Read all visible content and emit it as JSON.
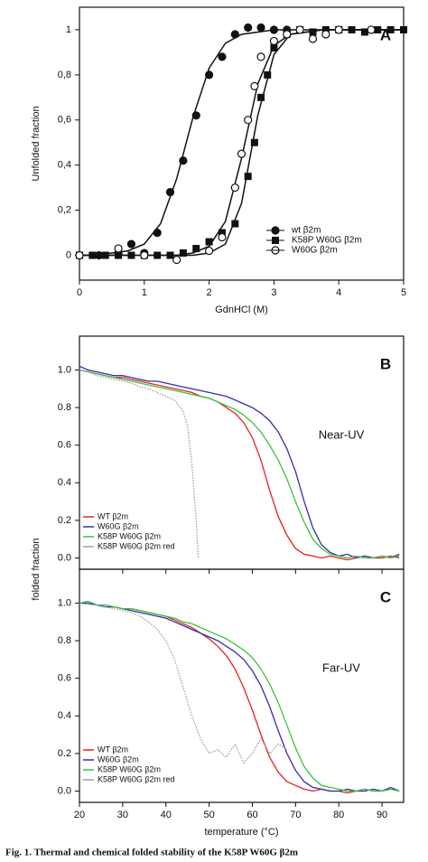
{
  "chart_data": [
    {
      "type": "scatter",
      "panel": "A",
      "xlabel": "GdnHCl (M)",
      "ylabel": "Unfolded fraction",
      "xlim": [
        0,
        5
      ],
      "ylim": [
        -0.11,
        1.1
      ],
      "xticks": [
        0,
        1,
        2,
        3,
        4,
        5
      ],
      "yticks": [
        0,
        {
          "value": 0.2,
          "label": "0,2"
        },
        {
          "value": 0.4,
          "label": "0,4"
        },
        {
          "value": 0.6,
          "label": "0,6"
        },
        {
          "value": 0.8,
          "label": "0,8"
        },
        1
      ],
      "fit_x": [
        0,
        0.25,
        0.5,
        0.75,
        1,
        1.25,
        1.5,
        1.75,
        2,
        2.25,
        2.5,
        2.75,
        3,
        3.25,
        3.5,
        3.75,
        4,
        4.25,
        4.5,
        4.75,
        5
      ],
      "series": [
        {
          "name": "wt β2m",
          "marker": "filled-circle",
          "color": "#111111",
          "x": [
            0,
            0.3,
            0.6,
            0.8,
            1.0,
            1.2,
            1.4,
            1.6,
            1.8,
            2.0,
            2.2,
            2.4,
            2.6,
            2.8,
            3.0,
            3.2
          ],
          "values": [
            0,
            0,
            0.01,
            0.05,
            0.01,
            0.1,
            0.28,
            0.42,
            0.62,
            0.8,
            0.88,
            0.98,
            1.01,
            1.01,
            1.0,
            1.0
          ],
          "fit_values": [
            0,
            0,
            0.01,
            0.02,
            0.05,
            0.14,
            0.34,
            0.61,
            0.83,
            0.94,
            0.98,
            0.99,
            1,
            1,
            1,
            1,
            1,
            1,
            1,
            1,
            1
          ]
        },
        {
          "name": "K58P W60G β2m",
          "marker": "filled-square",
          "color": "#111111",
          "x": [
            0,
            0.2,
            0.4,
            0.6,
            0.8,
            1.0,
            1.2,
            1.4,
            1.6,
            1.8,
            2.0,
            2.2,
            2.4,
            2.6,
            2.7,
            2.8,
            2.9,
            3.0,
            3.2,
            3.4,
            3.6,
            3.8,
            4.0,
            4.2,
            4.4,
            4.6,
            4.8,
            5.0
          ],
          "values": [
            0,
            0,
            0,
            0,
            0,
            0,
            0,
            0,
            0.01,
            0.03,
            0.06,
            0.1,
            0.14,
            0.35,
            0.5,
            0.7,
            0.8,
            0.92,
            0.98,
            1.0,
            0.99,
            1.0,
            1.0,
            1.0,
            0.99,
            1.0,
            1.0,
            1.0
          ],
          "fit_values": [
            0,
            0,
            0,
            0,
            0,
            0,
            0,
            0,
            0.01,
            0.05,
            0.23,
            0.62,
            0.89,
            0.98,
            0.99,
            1,
            1,
            1,
            1,
            1,
            1
          ]
        },
        {
          "name": "W60G β2m",
          "marker": "open-circle",
          "color": "#111111",
          "x": [
            0,
            0.6,
            1.0,
            1.5,
            2.0,
            2.2,
            2.4,
            2.5,
            2.6,
            2.7,
            2.8,
            3.0,
            3.2,
            3.4,
            3.6,
            3.8,
            4.0,
            4.5
          ],
          "values": [
            0,
            0.03,
            0,
            -0.02,
            0.02,
            0.08,
            0.3,
            0.45,
            0.6,
            0.75,
            0.88,
            0.95,
            0.98,
            1.0,
            0.96,
            0.98,
            1.0,
            1.0
          ],
          "fit_values": [
            0,
            0,
            0,
            0,
            0,
            0,
            0,
            0.01,
            0.04,
            0.15,
            0.43,
            0.76,
            0.93,
            0.98,
            0.99,
            1,
            1,
            1,
            1,
            1,
            1
          ]
        }
      ]
    },
    {
      "type": "line",
      "panel": "B",
      "annotation": "Near-UV",
      "ylabel": "folded fraction",
      "xlim": [
        20,
        95
      ],
      "ylim": [
        -0.06,
        1.18
      ],
      "xticks": [
        20,
        30,
        40,
        50,
        60,
        70,
        80,
        90
      ],
      "yticks": [
        {
          "value": 0,
          "label": "0.0"
        },
        {
          "value": 0.2,
          "label": "0.2"
        },
        {
          "value": 0.4,
          "label": "0.4"
        },
        {
          "value": 0.6,
          "label": "0.6"
        },
        {
          "value": 0.8,
          "label": "0.8"
        },
        {
          "value": 1,
          "label": "1.0"
        }
      ],
      "series": [
        {
          "name": "WT β2m",
          "color": "#e8201c",
          "x": [
            20,
            22,
            24,
            26,
            28,
            30,
            32,
            34,
            36,
            38,
            40,
            42,
            44,
            46,
            48,
            50,
            52,
            54,
            56,
            58,
            60,
            62,
            64,
            66,
            68,
            70,
            72,
            74,
            76,
            78,
            80,
            82,
            84,
            86,
            88,
            90,
            92,
            94
          ],
          "values": [
            1.0,
            0.99,
            0.98,
            0.97,
            0.96,
            0.96,
            0.95,
            0.94,
            0.93,
            0.92,
            0.91,
            0.9,
            0.89,
            0.88,
            0.86,
            0.85,
            0.83,
            0.8,
            0.77,
            0.72,
            0.64,
            0.52,
            0.36,
            0.22,
            0.12,
            0.05,
            0.02,
            0.01,
            0.0,
            0.01,
            0.0,
            -0.01,
            0.0,
            0.01,
            0.0,
            0.0,
            0.01,
            0.0
          ]
        },
        {
          "name": "W60G β2m",
          "color": "#3030b0",
          "x": [
            20,
            22,
            24,
            26,
            28,
            30,
            32,
            34,
            36,
            38,
            40,
            42,
            44,
            46,
            48,
            50,
            52,
            54,
            56,
            58,
            60,
            62,
            64,
            66,
            68,
            70,
            72,
            74,
            76,
            78,
            80,
            82,
            84,
            86,
            88,
            90,
            92,
            94
          ],
          "values": [
            1.02,
            1.0,
            0.99,
            0.98,
            0.97,
            0.97,
            0.96,
            0.95,
            0.94,
            0.94,
            0.93,
            0.92,
            0.91,
            0.9,
            0.89,
            0.88,
            0.87,
            0.86,
            0.84,
            0.82,
            0.8,
            0.77,
            0.73,
            0.67,
            0.58,
            0.46,
            0.3,
            0.16,
            0.07,
            0.03,
            0.01,
            0.02,
            0.0,
            0.01,
            0.0,
            0.01,
            0.0,
            0.02
          ]
        },
        {
          "name": "K58P W60G β2m",
          "color": "#3cc33c",
          "x": [
            20,
            22,
            24,
            26,
            28,
            30,
            32,
            34,
            36,
            38,
            40,
            42,
            44,
            46,
            48,
            50,
            52,
            54,
            56,
            58,
            60,
            62,
            64,
            66,
            68,
            70,
            72,
            74,
            76,
            78,
            80,
            82,
            84,
            86,
            88,
            90,
            92,
            94
          ],
          "values": [
            1.0,
            0.99,
            0.98,
            0.97,
            0.96,
            0.95,
            0.94,
            0.93,
            0.92,
            0.91,
            0.9,
            0.89,
            0.88,
            0.87,
            0.86,
            0.85,
            0.83,
            0.81,
            0.79,
            0.76,
            0.72,
            0.67,
            0.6,
            0.52,
            0.42,
            0.3,
            0.19,
            0.1,
            0.05,
            0.02,
            0.01,
            0.0,
            0.01,
            0.0,
            0.0,
            0.01,
            0.0,
            0.01
          ]
        },
        {
          "name": "K58P W60G β2m red",
          "color": "#a0a0a0",
          "style": "dotted",
          "x": [
            20,
            22,
            24,
            26,
            28,
            30,
            32,
            34,
            36,
            38,
            40,
            42,
            44,
            45,
            46,
            47,
            47.5
          ],
          "values": [
            1.0,
            0.99,
            0.97,
            0.96,
            0.95,
            0.94,
            0.93,
            0.91,
            0.9,
            0.88,
            0.86,
            0.84,
            0.78,
            0.7,
            0.5,
            0.2,
            0.0
          ]
        }
      ]
    },
    {
      "type": "line",
      "panel": "C",
      "annotation": "Far-UV",
      "xlabel": "temperature (°C)",
      "xlim": [
        20,
        95
      ],
      "ylim": [
        -0.06,
        1.18
      ],
      "xticks": [
        20,
        30,
        40,
        50,
        60,
        70,
        80,
        90
      ],
      "yticks": [
        {
          "value": 0,
          "label": "0.0"
        },
        {
          "value": 0.2,
          "label": "0.2"
        },
        {
          "value": 0.4,
          "label": "0.4"
        },
        {
          "value": 0.6,
          "label": "0.6"
        },
        {
          "value": 0.8,
          "label": "0.8"
        },
        {
          "value": 1,
          "label": "1.0"
        }
      ],
      "series": [
        {
          "name": "WT β2m",
          "color": "#e8201c",
          "x": [
            20,
            22,
            24,
            26,
            28,
            30,
            32,
            34,
            36,
            38,
            40,
            42,
            44,
            46,
            48,
            50,
            52,
            54,
            56,
            58,
            60,
            62,
            64,
            66,
            68,
            70,
            72,
            74,
            76,
            78,
            80,
            82,
            84,
            86,
            88,
            90,
            92,
            94
          ],
          "values": [
            1.0,
            1.0,
            0.99,
            0.98,
            0.98,
            0.97,
            0.97,
            0.96,
            0.95,
            0.94,
            0.93,
            0.91,
            0.89,
            0.87,
            0.84,
            0.81,
            0.77,
            0.72,
            0.65,
            0.55,
            0.43,
            0.3,
            0.18,
            0.1,
            0.05,
            0.03,
            0.01,
            0.0,
            0.01,
            0.0,
            0.0,
            -0.01,
            0.0,
            0.01,
            0.0,
            0.0,
            0.01,
            0.0
          ]
        },
        {
          "name": "W60G β2m",
          "color": "#3030b0",
          "x": [
            20,
            22,
            24,
            26,
            28,
            30,
            32,
            34,
            36,
            38,
            40,
            42,
            44,
            46,
            48,
            50,
            52,
            54,
            56,
            58,
            60,
            62,
            64,
            66,
            68,
            70,
            72,
            74,
            76,
            78,
            80,
            82,
            84,
            86,
            88,
            90,
            92,
            94
          ],
          "values": [
            1.0,
            1.0,
            0.99,
            0.98,
            0.98,
            0.97,
            0.96,
            0.95,
            0.94,
            0.93,
            0.92,
            0.9,
            0.88,
            0.86,
            0.84,
            0.82,
            0.8,
            0.77,
            0.74,
            0.7,
            0.64,
            0.56,
            0.45,
            0.32,
            0.2,
            0.11,
            0.05,
            0.02,
            0.01,
            0.0,
            0.0,
            0.01,
            0.0,
            0.0,
            0.01,
            0.0,
            0.02,
            0.0
          ]
        },
        {
          "name": "K58P W60G β2m",
          "color": "#3cc33c",
          "x": [
            20,
            22,
            24,
            26,
            28,
            30,
            32,
            34,
            36,
            38,
            40,
            42,
            44,
            46,
            48,
            50,
            52,
            54,
            56,
            58,
            60,
            62,
            64,
            66,
            68,
            70,
            72,
            74,
            76,
            78,
            80,
            82,
            84,
            86,
            88,
            90,
            92,
            94
          ],
          "values": [
            1.0,
            1.01,
            0.99,
            0.99,
            0.98,
            0.97,
            0.97,
            0.96,
            0.95,
            0.94,
            0.93,
            0.92,
            0.9,
            0.89,
            0.87,
            0.85,
            0.83,
            0.81,
            0.78,
            0.75,
            0.71,
            0.65,
            0.57,
            0.47,
            0.35,
            0.23,
            0.13,
            0.07,
            0.03,
            0.02,
            0.01,
            0.0,
            0.0,
            0.01,
            0.0,
            0.0,
            0.01,
            0.0
          ]
        },
        {
          "name": "K58P W60G β2m red",
          "color": "#a0a0a0",
          "style": "dotted",
          "x": [
            20,
            22,
            24,
            26,
            28,
            30,
            32,
            34,
            36,
            38,
            40,
            42,
            44,
            46,
            48,
            50,
            52,
            54,
            56,
            58,
            60,
            62,
            64,
            66,
            68
          ],
          "values": [
            1.0,
            0.99,
            0.99,
            0.98,
            0.97,
            0.96,
            0.95,
            0.93,
            0.9,
            0.86,
            0.8,
            0.7,
            0.55,
            0.4,
            0.28,
            0.2,
            0.22,
            0.18,
            0.25,
            0.15,
            0.2,
            0.28,
            0.2,
            0.25,
            0.22
          ]
        }
      ]
    }
  ],
  "caption": "Fig. 1. Thermal and chemical folded stability of the K58P W60G β2m"
}
